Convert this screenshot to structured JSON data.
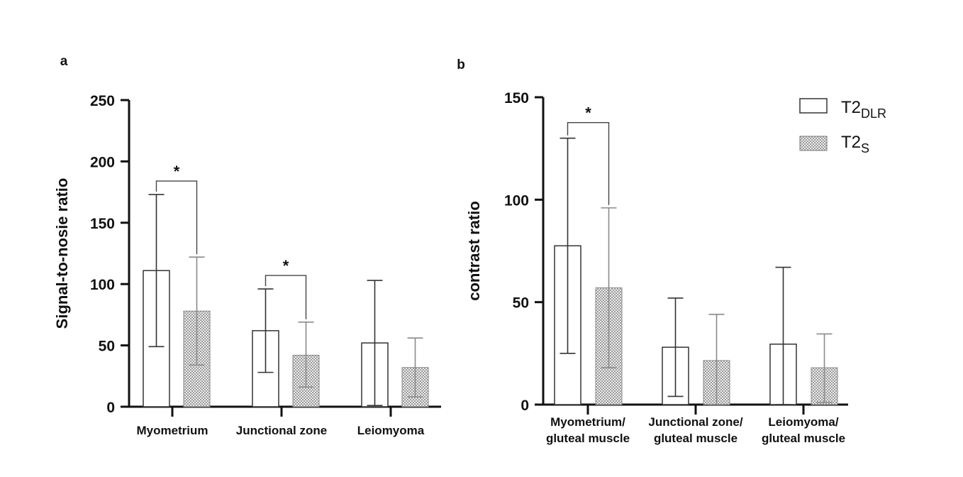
{
  "chart_data": [
    {
      "type": "bar",
      "panel_label": "a",
      "title": "",
      "xlabel": "",
      "ylabel": "Signal-to-nosie ratio",
      "ylim": [
        0,
        250
      ],
      "yticks": [
        0,
        50,
        100,
        150,
        200,
        250
      ],
      "categories": [
        "Myometrium",
        "Junctional zone",
        "Leiomyoma"
      ],
      "series": [
        {
          "name": "T2DLR",
          "values": [
            111,
            62,
            52
          ],
          "err_low": [
            49,
            28,
            1
          ],
          "err_high": [
            173,
            96,
            103
          ]
        },
        {
          "name": "T2S",
          "values": [
            78,
            42,
            32
          ],
          "err_low": [
            34,
            16,
            8
          ],
          "err_high": [
            122,
            69,
            56
          ]
        }
      ],
      "significance": [
        {
          "category": 0,
          "label": "*"
        },
        {
          "category": 1,
          "label": "*"
        }
      ]
    },
    {
      "type": "bar",
      "panel_label": "b",
      "title": "",
      "xlabel": "",
      "ylabel": "contrast ratio",
      "ylim": [
        0,
        150
      ],
      "yticks": [
        0,
        50,
        100,
        150
      ],
      "categories": [
        [
          "Myometrium/",
          "gluteal muscle"
        ],
        [
          "Junctional zone/",
          "gluteal muscle"
        ],
        [
          "Leiomyoma/",
          "gluteal muscle"
        ]
      ],
      "series": [
        {
          "name": "T2DLR",
          "values": [
            77.5,
            28,
            29.5
          ],
          "err_low": [
            25,
            4,
            0
          ],
          "err_high": [
            130,
            52,
            67
          ]
        },
        {
          "name": "T2S",
          "values": [
            57,
            21.5,
            18
          ],
          "err_low": [
            18,
            0,
            1
          ],
          "err_high": [
            96,
            44,
            34.5
          ]
        }
      ],
      "significance": [
        {
          "category": 0,
          "label": "*"
        }
      ]
    }
  ],
  "legend": {
    "position": "top-right",
    "items": [
      {
        "base": "T2",
        "sub": "DLR",
        "style": "hollow"
      },
      {
        "base": "T2",
        "sub": "S",
        "style": "checkered"
      }
    ]
  }
}
